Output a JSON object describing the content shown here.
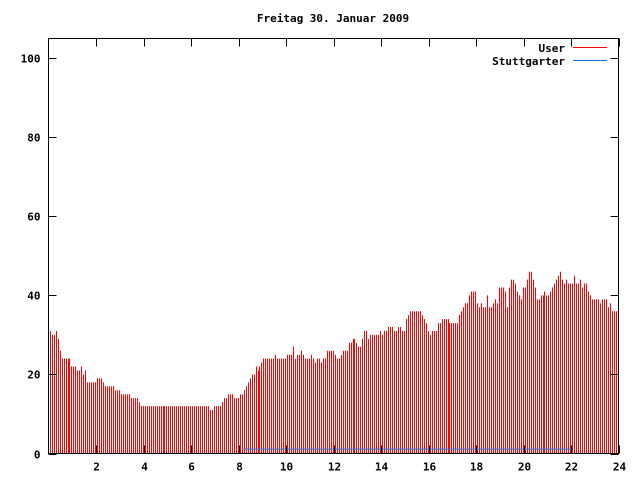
{
  "chart_data": {
    "type": "bar",
    "title": "Freitag 30. Januar 2009",
    "xlabel": "",
    "ylabel": "",
    "xlim": [
      0,
      24
    ],
    "ylim": [
      0,
      105
    ],
    "x_ticks": [
      "2",
      "4",
      "6",
      "8",
      "10",
      "12",
      "14",
      "16",
      "18",
      "20",
      "22",
      "24"
    ],
    "y_ticks": [
      "0",
      "20",
      "40",
      "60",
      "80",
      "100"
    ],
    "grid": false,
    "legend_position": "top-right",
    "series": [
      {
        "name": "User",
        "style": "impulses",
        "color": "#ff0000",
        "values": [
          31,
          30,
          30,
          31,
          29,
          26,
          24,
          24,
          24,
          24,
          24,
          22,
          22,
          22,
          21,
          21,
          22,
          20,
          21,
          18,
          18,
          18,
          18,
          18,
          19,
          19,
          19,
          18,
          17,
          17,
          17,
          17,
          17,
          16,
          16,
          16,
          15,
          15,
          15,
          15,
          15,
          14,
          14,
          14,
          14,
          13,
          12,
          12,
          12,
          12,
          12,
          12,
          12,
          12,
          12,
          12,
          12,
          12,
          12,
          12,
          12,
          12,
          12,
          12,
          12,
          12,
          12,
          12,
          12,
          12,
          12,
          12,
          12,
          12,
          12,
          12,
          12,
          12,
          12,
          12,
          12,
          11,
          11,
          12,
          12,
          12,
          12,
          13,
          14,
          14,
          15,
          15,
          15,
          14,
          14,
          14,
          15,
          15,
          16,
          17,
          18,
          19,
          20,
          20,
          22,
          21,
          22,
          23,
          24,
          24,
          24,
          24,
          24,
          24,
          25,
          24,
          24,
          24,
          24,
          24,
          25,
          25,
          25,
          27,
          24,
          25,
          25,
          26,
          25,
          24,
          24,
          24,
          25,
          24,
          23,
          24,
          24,
          23,
          24,
          24,
          26,
          26,
          26,
          26,
          25,
          24,
          24,
          25,
          26,
          26,
          26,
          28,
          28,
          29,
          29,
          28,
          27,
          27,
          29,
          31,
          31,
          29,
          30,
          30,
          30,
          30,
          30,
          31,
          30,
          31,
          31,
          32,
          32,
          32,
          31,
          31,
          32,
          32,
          31,
          31,
          34,
          35,
          36,
          36,
          36,
          36,
          36,
          36,
          35,
          34,
          33,
          31,
          30,
          31,
          31,
          31,
          33,
          33,
          34,
          34,
          34,
          34,
          33,
          33,
          33,
          33,
          33,
          35,
          36,
          37,
          38,
          38,
          40,
          41,
          41,
          41,
          38,
          37,
          38,
          37,
          37,
          40,
          37,
          37,
          38,
          39,
          38,
          42,
          42,
          42,
          41,
          37,
          42,
          44,
          44,
          43,
          41,
          40,
          39,
          42,
          42,
          44,
          46,
          46,
          44,
          42,
          39,
          39,
          40,
          40,
          41,
          40,
          40,
          41,
          42,
          43,
          44,
          45,
          46,
          44,
          43,
          44,
          43,
          43,
          43,
          45,
          43,
          43,
          44,
          42,
          43,
          43,
          41,
          40,
          39,
          39,
          39,
          39,
          38,
          39,
          39,
          39,
          37,
          38,
          36,
          36,
          36,
          36
        ]
      },
      {
        "name": "Stuttgarter",
        "style": "lines",
        "color": "#1f6fd6",
        "points": [
          [
            8.2,
            1
          ],
          [
            22.0,
            1
          ]
        ]
      }
    ]
  }
}
